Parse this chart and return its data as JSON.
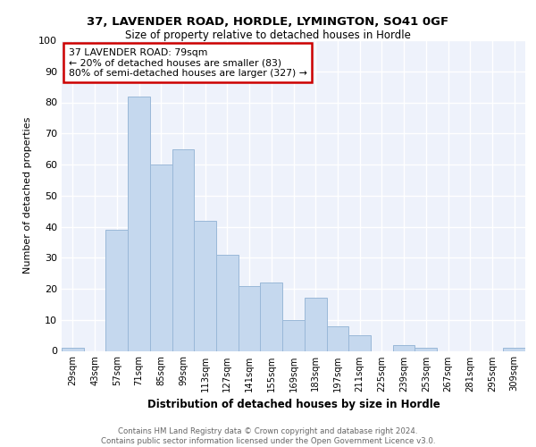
{
  "title1": "37, LAVENDER ROAD, HORDLE, LYMINGTON, SO41 0GF",
  "title2": "Size of property relative to detached houses in Hordle",
  "xlabel": "Distribution of detached houses by size in Hordle",
  "ylabel": "Number of detached properties",
  "categories": [
    "29sqm",
    "43sqm",
    "57sqm",
    "71sqm",
    "85sqm",
    "99sqm",
    "113sqm",
    "127sqm",
    "141sqm",
    "155sqm",
    "169sqm",
    "183sqm",
    "197sqm",
    "211sqm",
    "225sqm",
    "239sqm",
    "253sqm",
    "267sqm",
    "281sqm",
    "295sqm",
    "309sqm"
  ],
  "values": [
    1,
    0,
    39,
    82,
    60,
    65,
    42,
    31,
    21,
    22,
    10,
    17,
    8,
    5,
    0,
    2,
    1,
    0,
    0,
    0,
    1
  ],
  "bar_color": "#c5d8ee",
  "bar_edge_color": "#9ab8d8",
  "background_color": "#eef2fb",
  "grid_color": "#ffffff",
  "annotation_text": "37 LAVENDER ROAD: 79sqm\n← 20% of detached houses are smaller (83)\n80% of semi-detached houses are larger (327) →",
  "annotation_box_color": "#ffffff",
  "annotation_box_edge_color": "#cc0000",
  "footer_text": "Contains HM Land Registry data © Crown copyright and database right 2024.\nContains public sector information licensed under the Open Government Licence v3.0.",
  "ylim": [
    0,
    100
  ],
  "yticks": [
    0,
    10,
    20,
    30,
    40,
    50,
    60,
    70,
    80,
    90,
    100
  ]
}
